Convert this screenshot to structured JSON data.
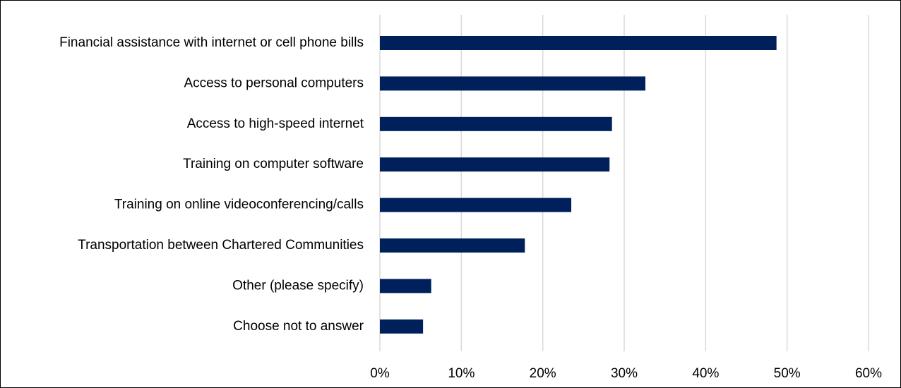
{
  "chart_data": {
    "type": "bar",
    "orientation": "horizontal",
    "title": "",
    "xlabel": "",
    "ylabel": "",
    "categories": [
      "Financial assistance with internet or cell phone bills",
      "Access to personal computers",
      "Access to high-speed internet",
      "Training on computer software",
      "Training on online videoconferencing/calls",
      "Transportation between Chartered Communities",
      "Other (please specify)",
      "Choose not to answer"
    ],
    "values": [
      48.7,
      32.6,
      28.5,
      28.2,
      23.5,
      17.8,
      6.3,
      5.3
    ],
    "xlim": [
      0,
      60
    ],
    "tick_values": [
      0,
      10,
      20,
      30,
      40,
      50,
      60
    ],
    "tick_labels": [
      "0%",
      "10%",
      "20%",
      "30%",
      "40%",
      "50%",
      "60%"
    ],
    "grid": "vertical",
    "legend": "none",
    "bar_color": "#00205b",
    "grid_color": "#d9d9d9"
  }
}
